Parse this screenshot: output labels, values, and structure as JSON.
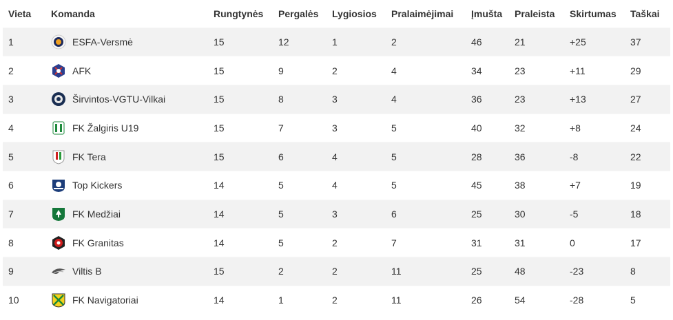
{
  "table": {
    "headers": [
      "Vieta",
      "Komanda",
      "Rungtynės",
      "Pergalės",
      "Lygiosios",
      "Pralaimėjimai",
      "Įmušta",
      "Praleista",
      "Skirtumas",
      "Taškai"
    ],
    "rows": [
      {
        "place": "1",
        "team": "ESFA-Versmė",
        "logo": "esfa-versme-logo-icon",
        "played": "15",
        "wins": "12",
        "draws": "1",
        "losses": "2",
        "scored": "46",
        "conceded": "21",
        "diff": "+25",
        "points": "37"
      },
      {
        "place": "2",
        "team": "AFK",
        "logo": "afk-logo-icon",
        "played": "15",
        "wins": "9",
        "draws": "2",
        "losses": "4",
        "scored": "34",
        "conceded": "23",
        "diff": "+11",
        "points": "29"
      },
      {
        "place": "3",
        "team": "Širvintos-VGTU-Vilkai",
        "logo": "sirvintos-vgtu-vilkai-logo-icon",
        "played": "15",
        "wins": "8",
        "draws": "3",
        "losses": "4",
        "scored": "36",
        "conceded": "23",
        "diff": "+13",
        "points": "27"
      },
      {
        "place": "4",
        "team": "FK Žalgiris U19",
        "logo": "zalgiris-logo-icon",
        "played": "15",
        "wins": "7",
        "draws": "3",
        "losses": "5",
        "scored": "40",
        "conceded": "32",
        "diff": "+8",
        "points": "24"
      },
      {
        "place": "5",
        "team": "FK Tera",
        "logo": "tera-logo-icon",
        "played": "15",
        "wins": "6",
        "draws": "4",
        "losses": "5",
        "scored": "28",
        "conceded": "36",
        "diff": "-8",
        "points": "22"
      },
      {
        "place": "6",
        "team": "Top Kickers",
        "logo": "top-kickers-logo-icon",
        "played": "14",
        "wins": "5",
        "draws": "4",
        "losses": "5",
        "scored": "45",
        "conceded": "38",
        "diff": "+7",
        "points": "19"
      },
      {
        "place": "7",
        "team": "FK Medžiai",
        "logo": "medziai-logo-icon",
        "played": "14",
        "wins": "5",
        "draws": "3",
        "losses": "6",
        "scored": "25",
        "conceded": "30",
        "diff": "-5",
        "points": "18"
      },
      {
        "place": "8",
        "team": "FK Granitas",
        "logo": "granitas-logo-icon",
        "played": "14",
        "wins": "5",
        "draws": "2",
        "losses": "7",
        "scored": "31",
        "conceded": "31",
        "diff": "0",
        "points": "17"
      },
      {
        "place": "9",
        "team": "Viltis B",
        "logo": "viltis-logo-icon",
        "played": "15",
        "wins": "2",
        "draws": "2",
        "losses": "11",
        "scored": "25",
        "conceded": "48",
        "diff": "-23",
        "points": "8"
      },
      {
        "place": "10",
        "team": "FK Navigatoriai",
        "logo": "navigatoriai-logo-icon",
        "played": "14",
        "wins": "1",
        "draws": "2",
        "losses": "11",
        "scored": "26",
        "conceded": "54",
        "diff": "-28",
        "points": "5"
      }
    ]
  },
  "colors": {
    "row_alt": "#f2f2f2",
    "text": "#333333"
  }
}
